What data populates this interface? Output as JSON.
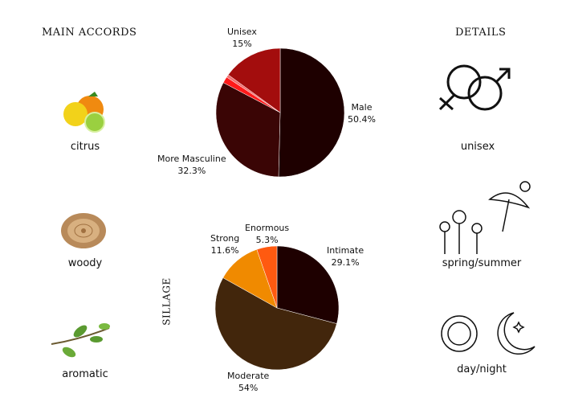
{
  "main_accords": {
    "title": "MAIN ACCORDS",
    "items": [
      {
        "label": "citrus",
        "icon": "citrus-fruit-icon"
      },
      {
        "label": "woody",
        "icon": "wood-slice-icon"
      },
      {
        "label": "aromatic",
        "icon": "herb-sprig-icon"
      }
    ]
  },
  "details": {
    "title": "DETAILS",
    "items": [
      {
        "label": "unisex",
        "icon": "gender-symbols-icon"
      },
      {
        "label": "spring/summer",
        "icon": "flowers-umbrella-sun-icon"
      },
      {
        "label": "day/night",
        "icon": "sun-moon-icon"
      }
    ]
  },
  "sillage_label": "SILLAGE",
  "chart_data": [
    {
      "type": "pie",
      "slices": [
        {
          "label": "Male",
          "pct_label": "50.4%",
          "value": 50.4,
          "color": "#1e0000"
        },
        {
          "label": "More Masculine",
          "pct_label": "32.3%",
          "value": 32.3,
          "color": "#3a0505"
        },
        {
          "label": "",
          "value": 1.6,
          "color": "#ff1a1a"
        },
        {
          "label": "",
          "value": 0.7,
          "color": "#f07070"
        },
        {
          "label": "Unisex",
          "pct_label": "15%",
          "value": 15,
          "color": "#a30d0d"
        }
      ]
    },
    {
      "type": "pie",
      "title": "SILLAGE",
      "slices": [
        {
          "label": "Intimate",
          "pct_label": "29.1%",
          "value": 29.1,
          "color": "#1e0000"
        },
        {
          "label": "Moderate",
          "pct_label": "54%",
          "value": 54,
          "color": "#42260c"
        },
        {
          "label": "Strong",
          "pct_label": "11.6%",
          "value": 11.6,
          "color": "#f08a00"
        },
        {
          "label": "Enormous",
          "pct_label": "5.3%",
          "value": 5.3,
          "color": "#ff5a10"
        }
      ]
    }
  ]
}
